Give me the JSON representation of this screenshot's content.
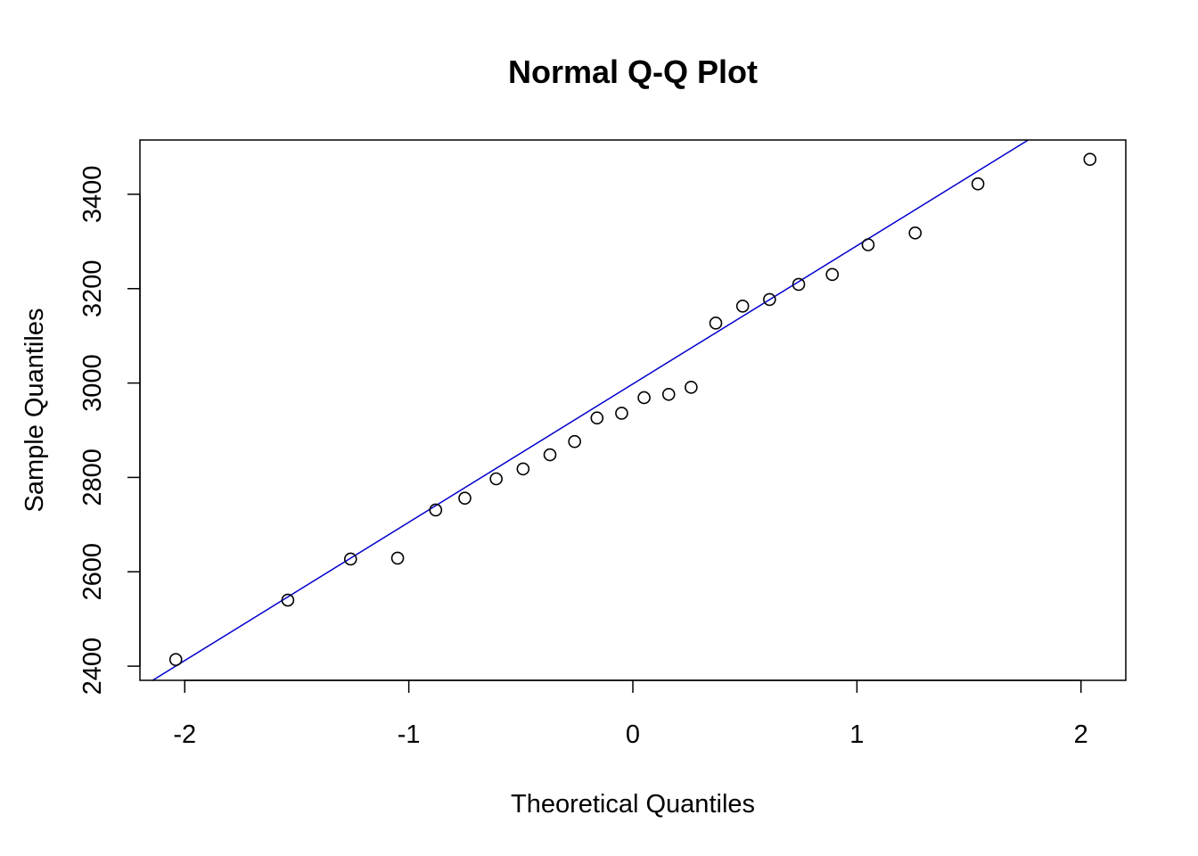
{
  "chart_data": {
    "type": "scatter",
    "title": "Normal Q-Q Plot",
    "xlabel": "Theoretical Quantiles",
    "ylabel": "Sample Quantiles",
    "xlim": [
      -2.2,
      2.2
    ],
    "ylim": [
      2370,
      3515
    ],
    "x_ticks": [
      -2,
      -1,
      0,
      1,
      2
    ],
    "x_tick_labels": [
      "-2",
      "-1",
      "0",
      "1",
      "2"
    ],
    "y_ticks": [
      2400,
      2600,
      2800,
      3000,
      3200,
      3400
    ],
    "y_tick_labels": [
      "2400",
      "2600",
      "2800",
      "3000",
      "3200",
      "3400"
    ],
    "grid": false,
    "points": [
      {
        "x": -2.04,
        "y": 2414
      },
      {
        "x": -1.54,
        "y": 2540
      },
      {
        "x": -1.26,
        "y": 2627
      },
      {
        "x": -1.05,
        "y": 2629
      },
      {
        "x": -0.88,
        "y": 2731
      },
      {
        "x": -0.75,
        "y": 2756
      },
      {
        "x": -0.61,
        "y": 2797
      },
      {
        "x": -0.49,
        "y": 2818
      },
      {
        "x": -0.37,
        "y": 2848
      },
      {
        "x": -0.26,
        "y": 2876
      },
      {
        "x": -0.16,
        "y": 2926
      },
      {
        "x": -0.05,
        "y": 2936
      },
      {
        "x": 0.05,
        "y": 2969
      },
      {
        "x": 0.16,
        "y": 2976
      },
      {
        "x": 0.26,
        "y": 2991
      },
      {
        "x": 0.37,
        "y": 3127
      },
      {
        "x": 0.49,
        "y": 3163
      },
      {
        "x": 0.61,
        "y": 3177
      },
      {
        "x": 0.74,
        "y": 3209
      },
      {
        "x": 0.89,
        "y": 3230
      },
      {
        "x": 1.05,
        "y": 3293
      },
      {
        "x": 1.26,
        "y": 3318
      },
      {
        "x": 1.54,
        "y": 3422
      },
      {
        "x": 2.04,
        "y": 3474
      }
    ],
    "reference_line": {
      "intercept": 2998,
      "slope": 293,
      "color": "#0000cc"
    },
    "point_color": "#000000"
  }
}
